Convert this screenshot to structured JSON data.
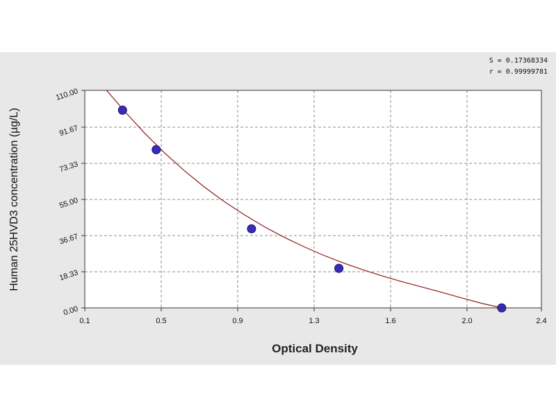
{
  "chart_data": {
    "type": "scatter",
    "xlabel": "Optical Density",
    "ylabel": "Human 25HVD3 concentration (µg/L)",
    "xlim": [
      0.1,
      2.4
    ],
    "ylim": [
      0.0,
      110.0
    ],
    "x_ticks": [
      "0.1",
      "0.5",
      "0.9",
      "1.3",
      "1.6",
      "2.0",
      "2.4"
    ],
    "y_ticks": [
      "0.00",
      "18.33",
      "36.67",
      "55.00",
      "73.33",
      "91.67",
      "110.00"
    ],
    "grid": true,
    "stats": {
      "s": "S = 0.17368334",
      "r": "r = 0.99999781"
    },
    "series": [
      {
        "points": [
          {
            "x": 0.29,
            "y": 100.0
          },
          {
            "x": 0.46,
            "y": 80.0
          },
          {
            "x": 0.94,
            "y": 40.0
          },
          {
            "x": 1.38,
            "y": 20.0
          },
          {
            "x": 2.2,
            "y": 0.0
          }
        ],
        "fit_curve": [
          {
            "x": 0.21,
            "y": 110.0
          },
          {
            "x": 0.3,
            "y": 99.5
          },
          {
            "x": 0.4,
            "y": 88.5
          },
          {
            "x": 0.5,
            "y": 78.5
          },
          {
            "x": 0.6,
            "y": 69.5
          },
          {
            "x": 0.7,
            "y": 61.3
          },
          {
            "x": 0.8,
            "y": 53.9
          },
          {
            "x": 0.9,
            "y": 47.3
          },
          {
            "x": 1.0,
            "y": 41.3
          },
          {
            "x": 1.1,
            "y": 35.9
          },
          {
            "x": 1.2,
            "y": 31.1
          },
          {
            "x": 1.3,
            "y": 26.7
          },
          {
            "x": 1.4,
            "y": 22.8
          },
          {
            "x": 1.5,
            "y": 19.3
          },
          {
            "x": 1.6,
            "y": 16.1
          },
          {
            "x": 1.7,
            "y": 13.2
          },
          {
            "x": 1.8,
            "y": 10.5
          },
          {
            "x": 1.9,
            "y": 7.8
          },
          {
            "x": 2.0,
            "y": 5.0
          },
          {
            "x": 2.1,
            "y": 2.3
          },
          {
            "x": 2.2,
            "y": 0.0
          }
        ]
      }
    ]
  },
  "colors": {
    "panel_bg": "#e8e8e8",
    "plot_bg": "#ffffff",
    "grid": "#8c8c8c",
    "curve": "#8b1a1a",
    "point_fill": "#3a2bb8",
    "point_stroke": "#1a1066"
  }
}
